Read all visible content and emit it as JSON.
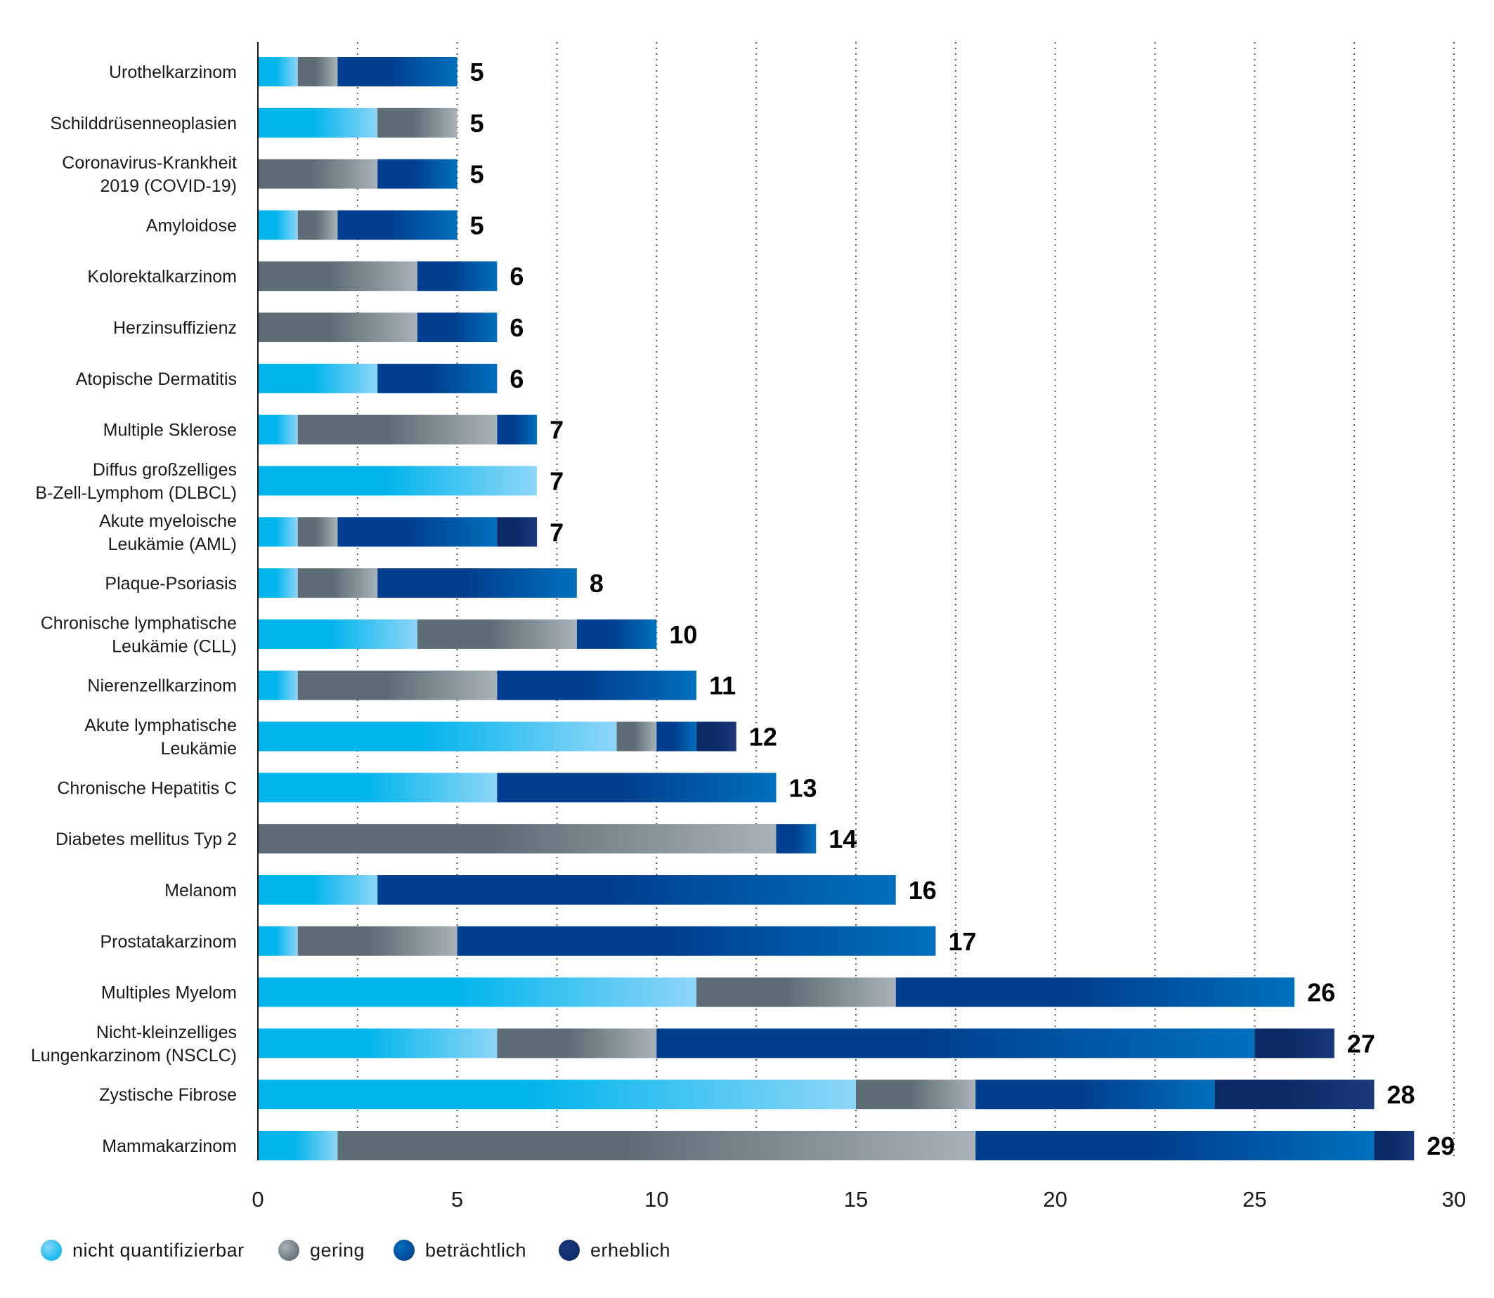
{
  "chart_data": {
    "type": "bar",
    "orientation": "horizontal",
    "stacked": true,
    "title": "",
    "xlabel": "",
    "ylabel": "",
    "xlim": [
      0,
      30
    ],
    "xticks": [
      0,
      5,
      10,
      15,
      20,
      25,
      30
    ],
    "grid": "vertical dotted at every 2.5 units",
    "legend_position": "bottom-left",
    "categories": [
      [
        "Urothelkarzinom"
      ],
      [
        "Schilddrüsenneoplasien"
      ],
      [
        "Coronavirus-Krankheit",
        "2019 (COVID-19)"
      ],
      [
        "Amyloidose"
      ],
      [
        "Kolorektalkarzinom"
      ],
      [
        "Herzinsuffizienz"
      ],
      [
        "Atopische Dermatitis"
      ],
      [
        "Multiple Sklerose"
      ],
      [
        "Diffus großzelliges",
        "B-Zell-Lymphom (DLBCL)"
      ],
      [
        "Akute myeloische",
        "Leukämie (AML)"
      ],
      [
        "Plaque-Psoriasis"
      ],
      [
        "Chronische lymphatische",
        "Leukämie (CLL)"
      ],
      [
        "Nierenzellkarzinom"
      ],
      [
        "Akute lymphatische",
        "Leukämie"
      ],
      [
        "Chronische Hepatitis C"
      ],
      [
        "Diabetes mellitus Typ 2"
      ],
      [
        "Melanom"
      ],
      [
        "Prostatakarzinom"
      ],
      [
        "Multiples Myelom"
      ],
      [
        "Nicht-kleinzelliges",
        "Lungenkarzinom (NSCLC)"
      ],
      [
        "Zystische Fibrose"
      ],
      [
        "Mammakarzinom"
      ]
    ],
    "series": [
      {
        "name": "nicht quantifizierbar",
        "color": "#29b7ee",
        "values": [
          1,
          3,
          0,
          1,
          0,
          0,
          3,
          1,
          7,
          1,
          1,
          4,
          1,
          9,
          6,
          0,
          3,
          1,
          11,
          6,
          15,
          2
        ]
      },
      {
        "name": "gering",
        "color": "#7d8a93",
        "values": [
          1,
          2,
          3,
          1,
          4,
          4,
          0,
          5,
          0,
          1,
          2,
          4,
          5,
          1,
          0,
          13,
          0,
          4,
          5,
          4,
          3,
          16
        ]
      },
      {
        "name": "beträchtlich",
        "color": "#0564b0",
        "values": [
          3,
          0,
          2,
          3,
          2,
          2,
          3,
          1,
          0,
          4,
          5,
          2,
          5,
          1,
          7,
          1,
          13,
          12,
          10,
          15,
          6,
          10
        ]
      },
      {
        "name": "erheblich",
        "color": "#142f6b",
        "values": [
          0,
          0,
          0,
          0,
          0,
          0,
          0,
          0,
          0,
          1,
          0,
          0,
          0,
          1,
          0,
          0,
          0,
          0,
          0,
          2,
          4,
          1
        ]
      }
    ],
    "totals": [
      5,
      5,
      5,
      5,
      6,
      6,
      6,
      7,
      7,
      7,
      8,
      10,
      11,
      12,
      13,
      14,
      16,
      17,
      26,
      27,
      28,
      29
    ]
  },
  "gradients": {
    "nicht quantifizierbar": [
      "#00b4ec",
      "#8dd6f8"
    ],
    "gering": [
      "#5d6c75",
      "#a8b2b8"
    ],
    "beträchtlich": [
      "#003f8f",
      "#0070bd"
    ],
    "erheblich": [
      "#0b2a66",
      "#1a3a7c"
    ]
  },
  "colors": {
    "axis": "#1a1a1a",
    "grid": "#555555",
    "text": "#1a1a1a"
  }
}
